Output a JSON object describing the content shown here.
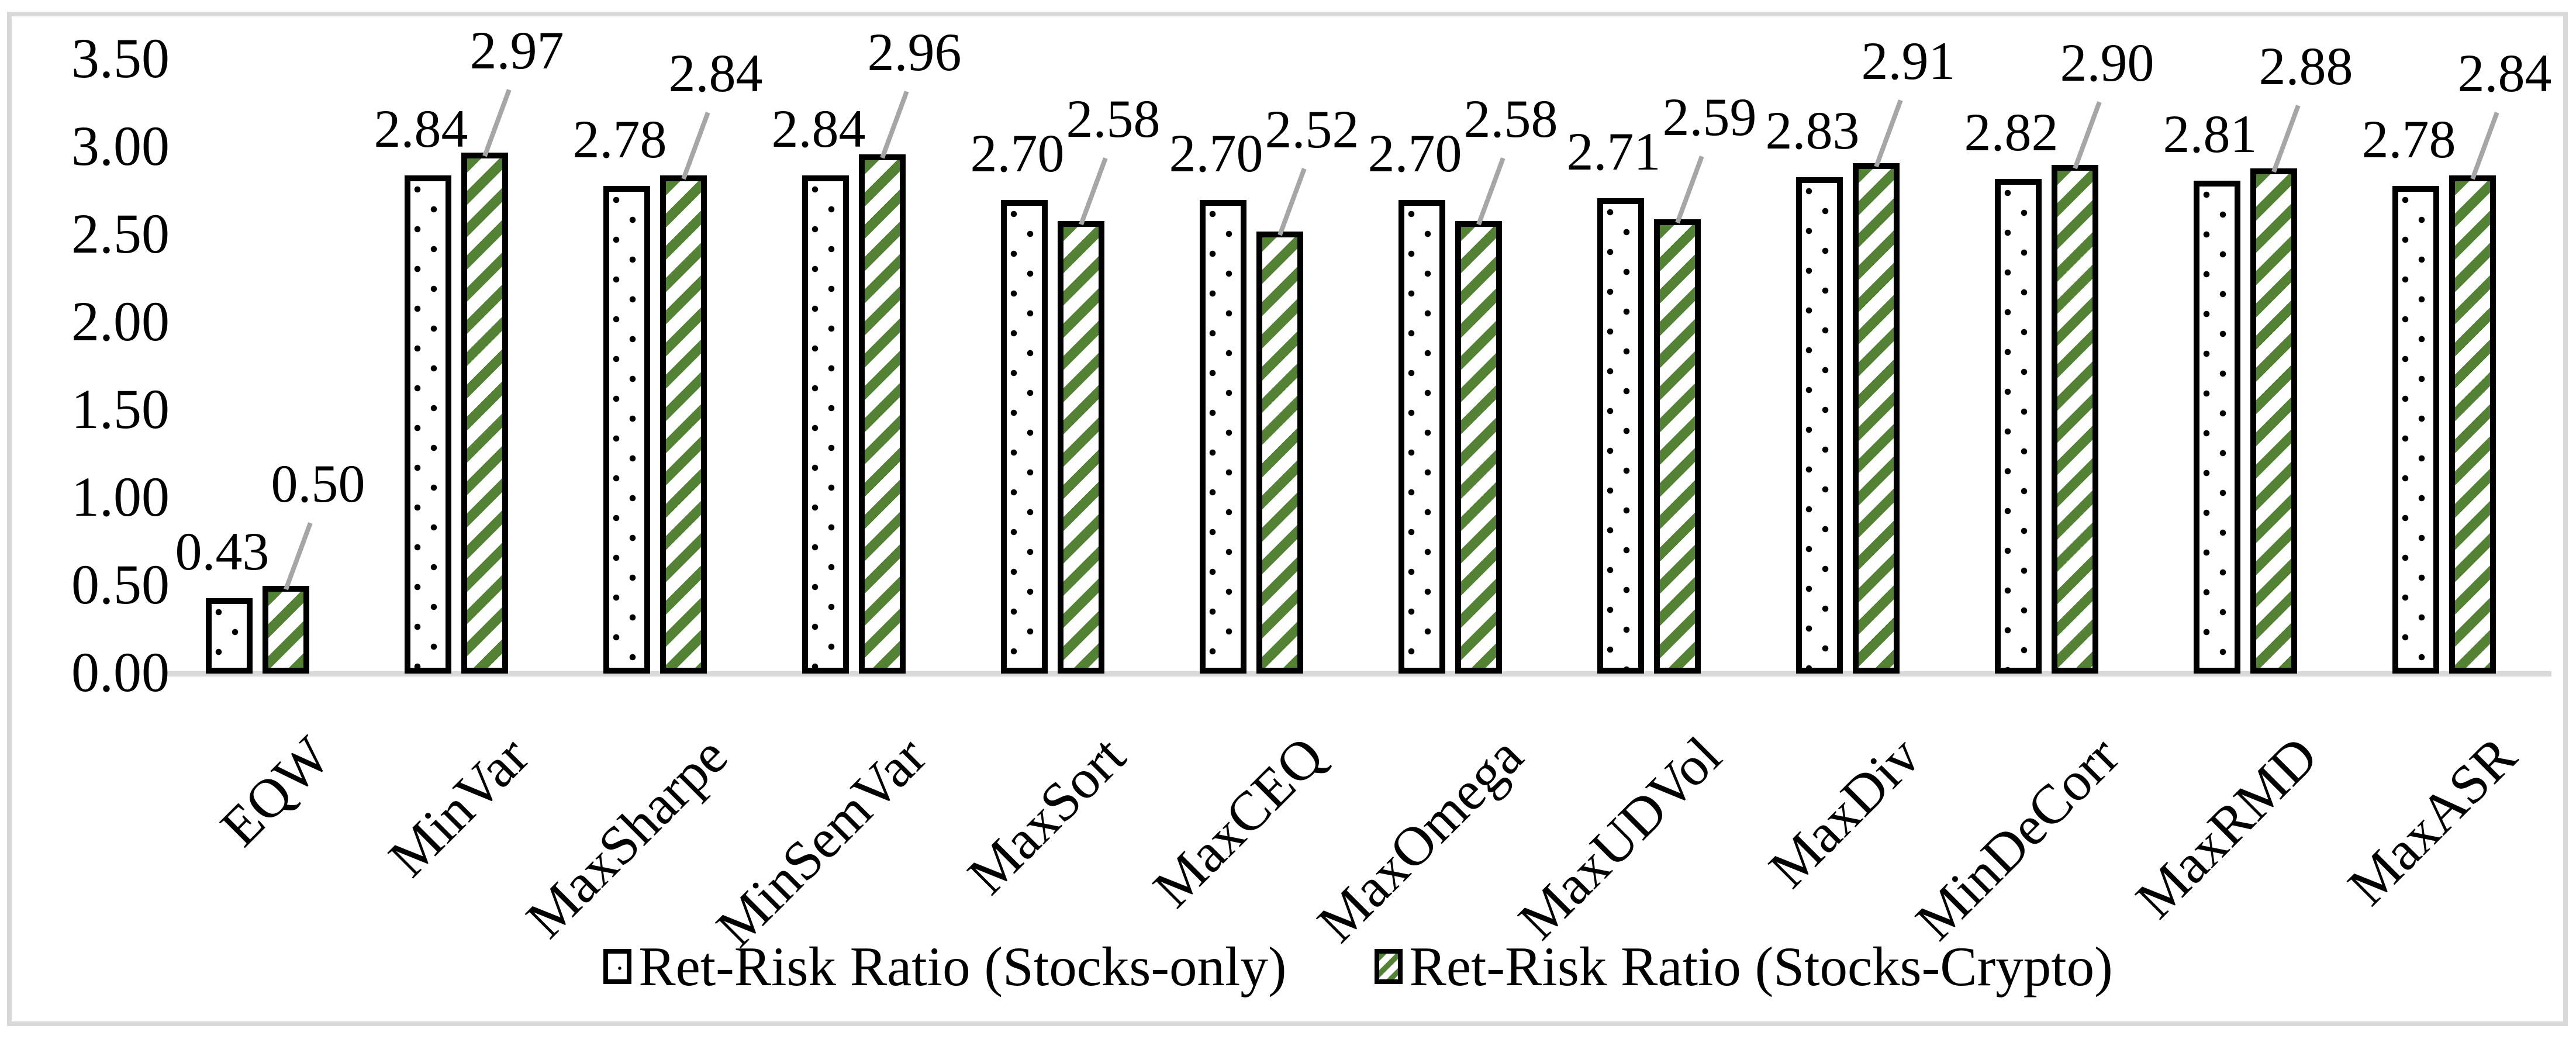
{
  "figure": {
    "background": "#ffffff",
    "frame_color": "#d9d9d9"
  },
  "chart_data": {
    "type": "bar",
    "title": "",
    "xlabel": "",
    "ylabel": "",
    "categories": [
      "EQW",
      "MinVar",
      "MaxSharpe",
      "MinSemVar",
      "MaxSort",
      "MaxCEQ",
      "MaxOmega",
      "MaxUDVol",
      "MaxDiv",
      "MinDeCorr",
      "MaxRMD",
      "MaxASR"
    ],
    "series": [
      {
        "name": "Ret-Risk Ratio (Stocks-only)",
        "pattern": "black-dots-on-white",
        "fill": "#ffffff",
        "pattern_color": "#000000",
        "values": [
          0.43,
          2.84,
          2.78,
          2.84,
          2.7,
          2.7,
          2.7,
          2.71,
          2.83,
          2.82,
          2.81,
          2.78
        ]
      },
      {
        "name": "Ret-Risk Ratio (Stocks-Crypto)",
        "pattern": "green-diagonal-stripes-on-white",
        "fill": "#ffffff",
        "pattern_color": "#548235",
        "values": [
          0.5,
          2.97,
          2.84,
          2.96,
          2.58,
          2.52,
          2.58,
          2.59,
          2.91,
          2.9,
          2.88,
          2.84
        ]
      }
    ],
    "data_labels": true,
    "data_label_decimals": 2,
    "ylim": [
      0,
      3.5
    ],
    "y_ticks": [
      "0.00",
      "0.50",
      "1.00",
      "1.50",
      "2.00",
      "2.50",
      "3.00",
      "3.50"
    ],
    "grid": false,
    "legend_position": "bottom",
    "bar_border_color": "#000000",
    "axis_line_color": "#d9d9d9",
    "leader_line_color": "#a6a6a6"
  },
  "legend": {
    "items": [
      {
        "label": "Ret-Risk Ratio (Stocks-only)"
      },
      {
        "label": "Ret-Risk Ratio (Stocks-Crypto)"
      }
    ]
  }
}
